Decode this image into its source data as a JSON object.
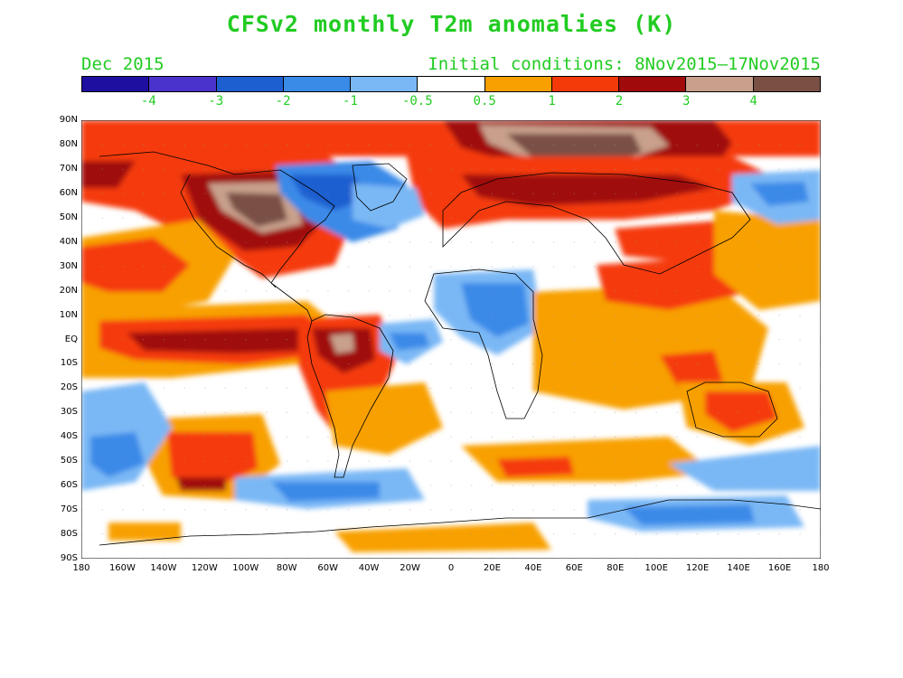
{
  "title": "CFSv2 monthly T2m anomalies (K)",
  "valid_month": "Dec 2015",
  "initial_conditions": "Initial conditions: 8Nov2015–17Nov2015",
  "colorbar": {
    "colors": [
      "#1f0fa0",
      "#4a33cc",
      "#1e5fd0",
      "#3a8ae8",
      "#7ab8f5",
      "#ffffff",
      "#f8a000",
      "#f53a0a",
      "#a00a0a",
      "#c8a08c",
      "#7a5044"
    ],
    "labels": [
      "-4",
      "-3",
      "-2",
      "-1",
      "-0.5",
      "0.5",
      "1",
      "2",
      "3",
      "4"
    ]
  },
  "map": {
    "lat_labels": [
      "90N",
      "80N",
      "70N",
      "60N",
      "50N",
      "40N",
      "30N",
      "20N",
      "10N",
      "EQ",
      "10S",
      "20S",
      "30S",
      "40S",
      "50S",
      "60S",
      "70S",
      "80S",
      "90S"
    ],
    "lon_labels": [
      "180",
      "160W",
      "140W",
      "120W",
      "100W",
      "80W",
      "60W",
      "40W",
      "20W",
      "0",
      "20E",
      "40E",
      "60E",
      "80E",
      "100E",
      "120E",
      "140E",
      "160E",
      "180"
    ]
  }
}
